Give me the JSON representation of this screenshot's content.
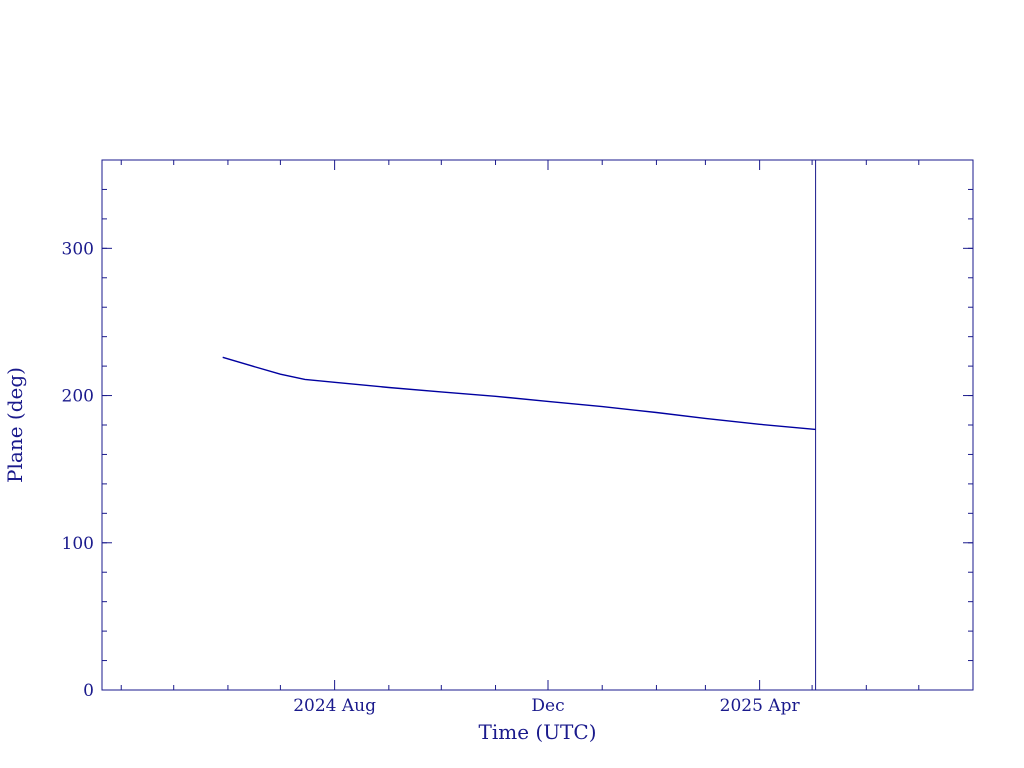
{
  "colors": {
    "axis": "#1a1a8c",
    "line": "#0000a0",
    "background": "#ffffff"
  },
  "chart_data": {
    "type": "line",
    "title": "",
    "xlabel": "Time (UTC)",
    "ylabel": "Plane (deg)",
    "x_type": "date",
    "xlim": [
      "2024-03-21",
      "2025-08-01"
    ],
    "ylim": [
      0,
      360
    ],
    "y_ticks": [
      0,
      100,
      200,
      300
    ],
    "y_tick_labels": [
      "0",
      "100",
      "200",
      "300"
    ],
    "y_minor_step": 20,
    "x_ticks": [
      "2024-08-01",
      "2024-12-01",
      "2025-04-01"
    ],
    "x_tick_labels": [
      "2024 Aug",
      "Dec",
      "2025 Apr"
    ],
    "x_minor_ticks": [
      "2024-04-01",
      "2024-05-01",
      "2024-06-01",
      "2024-07-01",
      "2024-09-01",
      "2024-10-01",
      "2024-11-01",
      "2025-01-01",
      "2025-02-01",
      "2025-03-01",
      "2025-05-01",
      "2025-06-01",
      "2025-07-01"
    ],
    "grid": false,
    "legend": "none",
    "series": [
      {
        "x": [
          "2024-05-29",
          "2024-06-15",
          "2024-07-01",
          "2024-07-15",
          "2024-08-01",
          "2024-09-01",
          "2024-10-01",
          "2024-11-01",
          "2024-12-01",
          "2025-01-01",
          "2025-02-01",
          "2025-03-01",
          "2025-04-01",
          "2025-05-03"
        ],
        "values": [
          226,
          220,
          214.5,
          211,
          209,
          205.5,
          202.5,
          199.5,
          196,
          192.5,
          188.5,
          184.5,
          180.5,
          177
        ]
      }
    ],
    "vertical_marker_x": "2025-05-03"
  }
}
